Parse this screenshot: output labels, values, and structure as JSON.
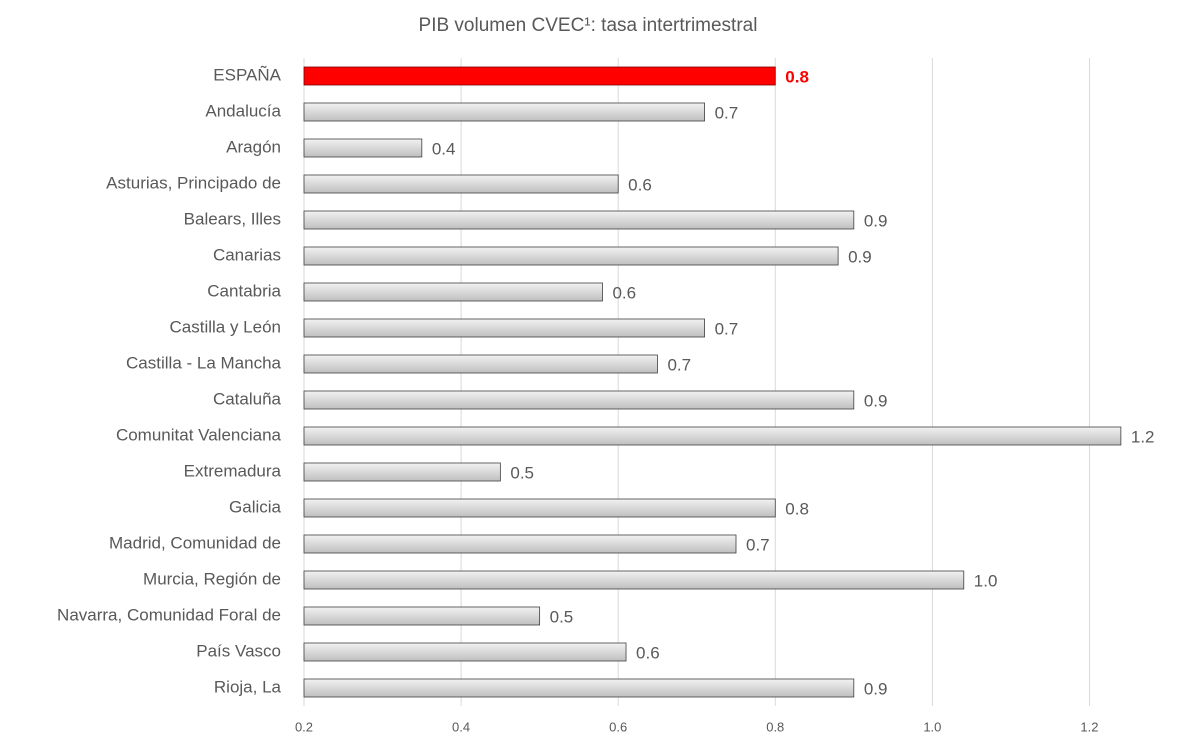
{
  "chart_data": {
    "type": "barh",
    "title": "PIB volumen CVEC¹: tasa intertrimestral",
    "categories": [
      "ESPAÑA",
      "Andalucía",
      "Aragón",
      "Asturias, Principado de",
      "Balears, Illes",
      "Canarias",
      "Cantabria",
      "Castilla y León",
      "Castilla - La Mancha",
      "Cataluña",
      "Comunitat Valenciana",
      "Extremadura",
      "Galicia",
      "Madrid, Comunidad de",
      "Murcia, Región de",
      "Navarra, Comunidad Foral de",
      "País Vasco",
      "Rioja, La"
    ],
    "values": [
      0.8,
      0.71,
      0.35,
      0.6,
      0.9,
      0.88,
      0.58,
      0.71,
      0.65,
      0.9,
      1.24,
      0.45,
      0.8,
      0.75,
      1.04,
      0.5,
      0.61,
      0.9
    ],
    "value_labels": [
      "0.8",
      "0.7",
      "0.4",
      "0.6",
      "0.9",
      "0.9",
      "0.6",
      "0.7",
      "0.7",
      "0.9",
      "1.2",
      "0.5",
      "0.8",
      "0.7",
      "1.0",
      "0.5",
      "0.6",
      "0.9"
    ],
    "colors": [
      "#ff0000",
      "#d9d9d9",
      "#d9d9d9",
      "#d9d9d9",
      "#d9d9d9",
      "#d9d9d9",
      "#d9d9d9",
      "#d9d9d9",
      "#d9d9d9",
      "#d9d9d9",
      "#d9d9d9",
      "#d9d9d9",
      "#d9d9d9",
      "#d9d9d9",
      "#d9d9d9",
      "#d9d9d9",
      "#d9d9d9",
      "#d9d9d9"
    ],
    "xlim": [
      0.2,
      1.3
    ],
    "xticks": [
      {
        "value": 0.2,
        "label": "0.2"
      },
      {
        "value": 0.4,
        "label": "0.4"
      },
      {
        "value": 0.6,
        "label": "0.6"
      },
      {
        "value": 0.8,
        "label": "0.8"
      },
      {
        "value": 1.0,
        "label": "1.0"
      },
      {
        "value": 1.2,
        "label": "1.2"
      }
    ],
    "grid": true
  }
}
